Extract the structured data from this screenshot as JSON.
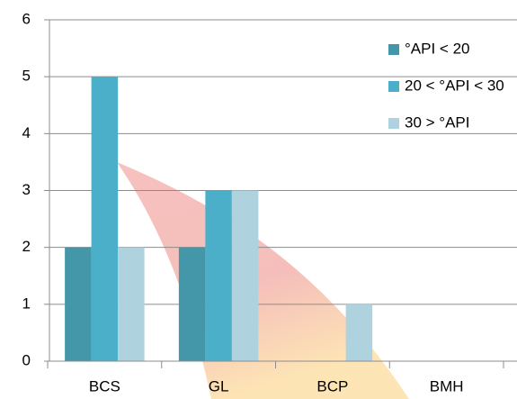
{
  "chart_data": {
    "type": "bar",
    "categories": [
      "BCS",
      "GL",
      "BCP",
      "BMH"
    ],
    "series": [
      {
        "name": "°API < 20",
        "color": "#4496a9",
        "values": [
          2,
          2,
          0,
          0
        ]
      },
      {
        "name": "20 < °API < 30",
        "color": "#4bafca",
        "values": [
          5,
          3,
          0,
          0
        ]
      },
      {
        "name": "30 > °API",
        "color": "#afd2df",
        "values": [
          2,
          3,
          1,
          0
        ]
      }
    ],
    "ylim": [
      0,
      6
    ],
    "yticks": [
      0,
      1,
      2,
      3,
      4,
      5,
      6
    ],
    "grid": true,
    "legend": "top-right"
  }
}
